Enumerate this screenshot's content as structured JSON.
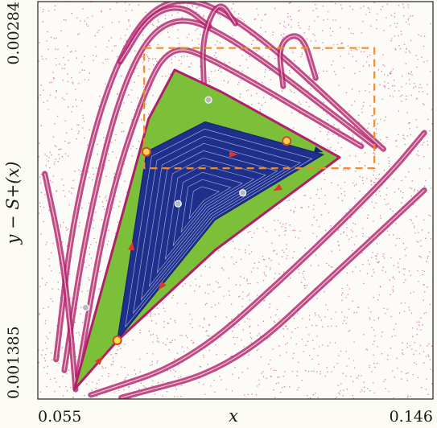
{
  "chart_data": {
    "type": "scatter",
    "title": "",
    "xlabel": "x",
    "ylabel": "y − S+(x)",
    "xlim": [
      0.055,
      0.146
    ],
    "ylim": [
      0.001385,
      0.00284
    ],
    "x_tick_labels": [
      "0.055",
      "0.146"
    ],
    "y_tick_labels": [
      "0.001385",
      "0.00284"
    ],
    "grid": false,
    "legend": "none",
    "colors": {
      "chaotic_sea": "#b0206a",
      "outer_island": "#7cc03a",
      "inner_island": "#1e2f8c",
      "inner_curves": "#c9d3f4",
      "fixed_point_fill": "#ffd84a",
      "fixed_point_edge": "#d2462a",
      "elliptic_point": "#b9b9b9",
      "arrow": "#e0352a",
      "zoom_box": "#f08a2a"
    },
    "regions": [
      {
        "name": "outer green island",
        "vertices": [
          [
            0.0634,
            0.00142
          ],
          [
            0.0805,
            0.00241
          ],
          [
            0.0865,
            0.00259
          ],
          [
            0.0972,
            0.00251
          ],
          [
            0.1245,
            0.00227
          ],
          [
            0.0958,
            0.00193
          ],
          [
            0.0734,
            0.0016
          ]
        ]
      },
      {
        "name": "inner blue island",
        "vertices": [
          [
            0.0733,
            0.0016
          ],
          [
            0.08,
            0.00229
          ],
          [
            0.0935,
            0.0024
          ],
          [
            0.1208,
            0.00228
          ],
          [
            0.0958,
            0.00204
          ]
        ]
      }
    ],
    "hyperbolic_points": [
      {
        "x": 0.0733,
        "y": 0.0016
      },
      {
        "x": 0.08,
        "y": 0.00229
      },
      {
        "x": 0.1123,
        "y": 0.00233
      }
    ],
    "elliptic_points": [
      {
        "x": 0.0943,
        "y": 0.00248
      },
      {
        "x": 0.1022,
        "y": 0.00214
      },
      {
        "x": 0.066,
        "y": 0.00172
      },
      {
        "x": 0.0873,
        "y": 0.0021
      }
    ],
    "zoom_box": {
      "x": [
        0.0795,
        0.1325
      ],
      "y": [
        0.00223,
        0.00267
      ]
    },
    "chaotic_bands": [
      {
        "points": [
          [
            0.0642,
            0.00147
          ],
          [
            0.0708,
            0.00208
          ],
          [
            0.0792,
            0.0025
          ],
          [
            0.0853,
            0.00268
          ],
          [
            0.0945,
            0.00264
          ],
          [
            0.1295,
            0.00231
          ]
        ]
      },
      {
        "points": [
          [
            0.0611,
            0.00149
          ],
          [
            0.0661,
            0.00201
          ],
          [
            0.0745,
            0.00255
          ],
          [
            0.084,
            0.00279
          ],
          [
            0.0975,
            0.00274
          ],
          [
            0.1326,
            0.00231
          ]
        ]
      },
      {
        "points": [
          [
            0.0592,
            0.00153
          ],
          [
            0.0633,
            0.00208
          ],
          [
            0.0725,
            0.00262
          ],
          [
            0.084,
            0.00287
          ],
          [
            0.1005,
            0.0028
          ],
          [
            0.1346,
            0.0023
          ]
        ]
      },
      {
        "points": [
          [
            0.0672,
            0.0014
          ],
          [
            0.09,
            0.00152
          ],
          [
            0.1152,
            0.00188
          ],
          [
            0.1356,
            0.0022
          ],
          [
            0.144,
            0.00236
          ]
        ]
      },
      {
        "points": [
          [
            0.0742,
            0.00139
          ],
          [
            0.1,
            0.0015
          ],
          [
            0.1245,
            0.00186
          ],
          [
            0.144,
            0.00215
          ]
        ]
      },
      {
        "points": [
          [
            0.0566,
            0.00221
          ],
          [
            0.0605,
            0.00192
          ],
          [
            0.0625,
            0.00165
          ],
          [
            0.0637,
            0.00142
          ]
        ]
      },
      {
        "points": [
          [
            0.074,
            0.00262
          ],
          [
            0.0805,
            0.00279
          ],
          [
            0.088,
            0.00283
          ],
          [
            0.0945,
            0.00275
          ]
        ]
      },
      {
        "points": [
          [
            0.0933,
            0.00252
          ],
          [
            0.0928,
            0.00271
          ],
          [
            0.0967,
            0.00285
          ],
          [
            0.1005,
            0.00276
          ]
        ]
      },
      {
        "points": [
          [
            0.1115,
            0.00253
          ],
          [
            0.1103,
            0.00269
          ],
          [
            0.1158,
            0.00273
          ],
          [
            0.119,
            0.00256
          ]
        ]
      }
    ]
  }
}
